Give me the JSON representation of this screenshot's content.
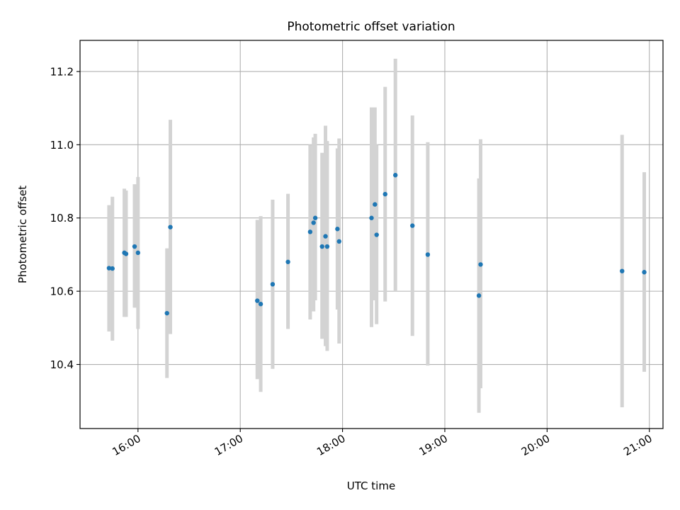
{
  "chart_data": {
    "type": "scatter",
    "title": "Photometric offset variation",
    "xlabel": "UTC time",
    "ylabel": "Photometric offset",
    "x_axis_kind": "time",
    "xlim": [
      "15:26",
      "21:08"
    ],
    "ylim": [
      10.225,
      11.285
    ],
    "grid": true,
    "x_ticks": [
      "16:00",
      "17:00",
      "18:00",
      "19:00",
      "20:00",
      "21:00"
    ],
    "y_ticks": [
      10.4,
      10.6,
      10.8,
      11.0,
      11.2
    ],
    "y_tick_labels": [
      "10.4",
      "10.6",
      "10.8",
      "11.0",
      "11.2"
    ],
    "marker_color": "#1f77b4",
    "errorbar_color": "#d3d3d3",
    "points": [
      {
        "x": "15:43",
        "y": 10.663,
        "ylo": 10.49,
        "yhi": 10.835
      },
      {
        "x": "15:45",
        "y": 10.662,
        "ylo": 10.465,
        "yhi": 10.858
      },
      {
        "x": "15:52",
        "y": 10.705,
        "ylo": 10.53,
        "yhi": 10.88
      },
      {
        "x": "15:53",
        "y": 10.702,
        "ylo": 10.53,
        "yhi": 10.875
      },
      {
        "x": "15:58",
        "y": 10.722,
        "ylo": 10.555,
        "yhi": 10.892
      },
      {
        "x": "16:00",
        "y": 10.705,
        "ylo": 10.497,
        "yhi": 10.912
      },
      {
        "x": "16:17",
        "y": 10.54,
        "ylo": 10.363,
        "yhi": 10.717
      },
      {
        "x": "16:19",
        "y": 10.775,
        "ylo": 10.483,
        "yhi": 11.068
      },
      {
        "x": "17:10",
        "y": 10.574,
        "ylo": 10.36,
        "yhi": 10.795
      },
      {
        "x": "17:12",
        "y": 10.565,
        "ylo": 10.325,
        "yhi": 10.805
      },
      {
        "x": "17:19",
        "y": 10.619,
        "ylo": 10.388,
        "yhi": 10.85
      },
      {
        "x": "17:28",
        "y": 10.68,
        "ylo": 10.497,
        "yhi": 10.866
      },
      {
        "x": "17:41",
        "y": 10.762,
        "ylo": 10.523,
        "yhi": 11.0
      },
      {
        "x": "17:43",
        "y": 10.787,
        "ylo": 10.545,
        "yhi": 11.02
      },
      {
        "x": "17:44",
        "y": 10.8,
        "ylo": 10.575,
        "yhi": 11.03
      },
      {
        "x": "17:48",
        "y": 10.722,
        "ylo": 10.47,
        "yhi": 10.978
      },
      {
        "x": "17:50",
        "y": 10.75,
        "ylo": 10.45,
        "yhi": 11.052
      },
      {
        "x": "17:51",
        "y": 10.722,
        "ylo": 10.437,
        "yhi": 11.01
      },
      {
        "x": "17:57",
        "y": 10.77,
        "ylo": 10.55,
        "yhi": 10.99
      },
      {
        "x": "17:58",
        "y": 10.736,
        "ylo": 10.457,
        "yhi": 11.017
      },
      {
        "x": "18:17",
        "y": 10.8,
        "ylo": 10.502,
        "yhi": 11.102
      },
      {
        "x": "18:19",
        "y": 10.837,
        "ylo": 10.575,
        "yhi": 11.102
      },
      {
        "x": "18:20",
        "y": 10.754,
        "ylo": 10.51,
        "yhi": 11.0
      },
      {
        "x": "18:25",
        "y": 10.865,
        "ylo": 10.572,
        "yhi": 11.158
      },
      {
        "x": "18:31",
        "y": 10.917,
        "ylo": 10.6,
        "yhi": 11.235
      },
      {
        "x": "18:41",
        "y": 10.779,
        "ylo": 10.478,
        "yhi": 11.08
      },
      {
        "x": "18:50",
        "y": 10.7,
        "ylo": 10.397,
        "yhi": 11.007
      },
      {
        "x": "19:20",
        "y": 10.588,
        "ylo": 10.268,
        "yhi": 10.908
      },
      {
        "x": "19:21",
        "y": 10.673,
        "ylo": 10.335,
        "yhi": 11.015
      },
      {
        "x": "20:44",
        "y": 10.655,
        "ylo": 10.283,
        "yhi": 11.027
      },
      {
        "x": "20:57",
        "y": 10.652,
        "ylo": 10.38,
        "yhi": 10.925
      }
    ]
  }
}
